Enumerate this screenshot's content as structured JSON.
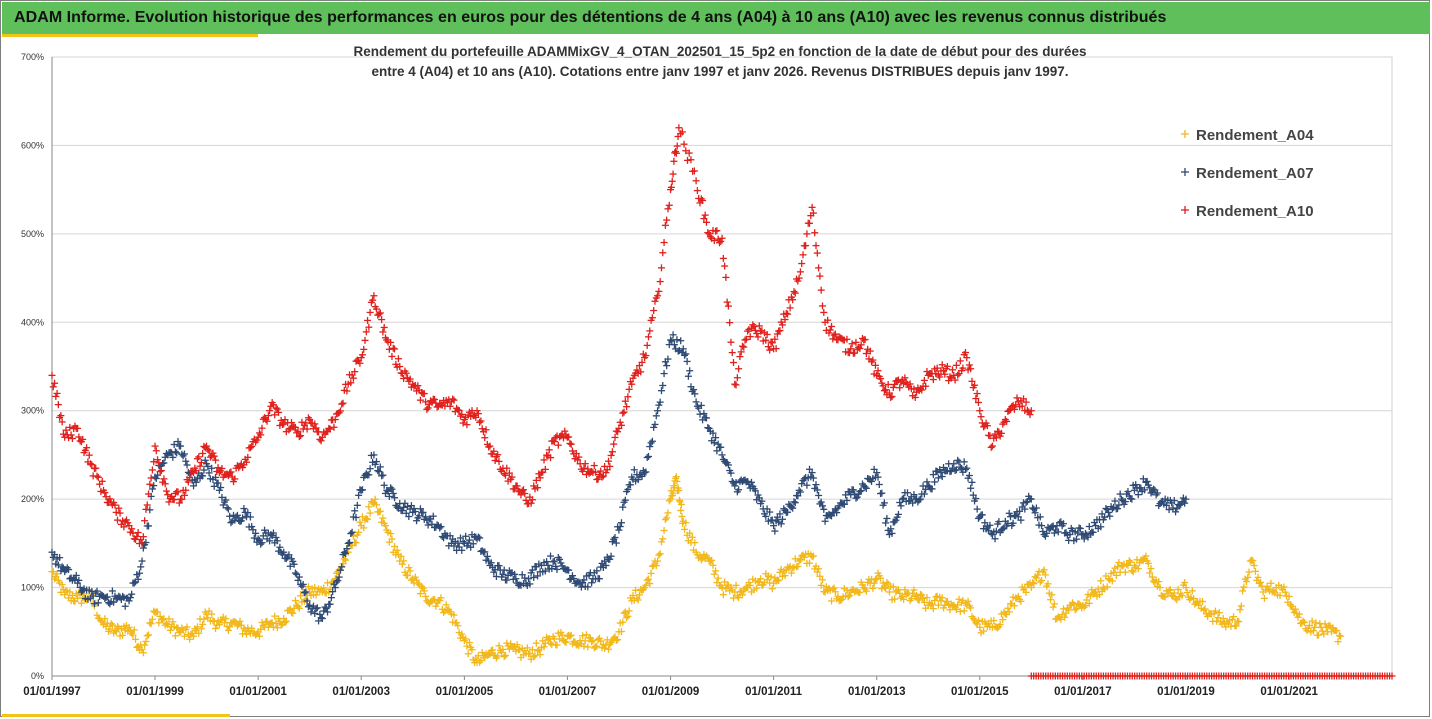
{
  "header": {
    "title": "ADAM Informe. Evolution historique des performances en euros pour des détentions de 4 ans (A04) à 10 ans (A10) avec les revenus connus distribués",
    "band_color": "#5ebf5b",
    "accent_color": "#f0c419"
  },
  "chart_data": {
    "type": "scatter",
    "subtitle_lines": [
      "Rendement du portefeuille ADAMMixGV_4_OTAN_202501_15_5p2  en fonction de la date de début pour des durées",
      "entre 4 (A04) et 10 ans (A10). Cotations entre janv 1997 et janv 2026. Revenus DISTRIBUES depuis janv 1997."
    ],
    "xlabel": "",
    "ylabel": "",
    "x_range": [
      "1997-01-01",
      "2022-12-31"
    ],
    "ylim": [
      0,
      700
    ],
    "y_ticks": [
      "0%",
      "100%",
      "200%",
      "300%",
      "400%",
      "500%",
      "600%",
      "700%"
    ],
    "x_ticks": [
      "01/01/1997",
      "01/01/1999",
      "01/01/2001",
      "01/01/2003",
      "01/01/2005",
      "01/01/2007",
      "01/01/2009",
      "01/01/2011",
      "01/01/2013",
      "01/01/2015",
      "01/01/2017",
      "01/01/2019",
      "01/01/2021"
    ],
    "grid": "horizontal",
    "legend_position": "top-right",
    "marker": "+",
    "series": [
      {
        "name": "Rendement_A04",
        "color": "#f2b81b",
        "points": [
          [
            "1997-01-01",
            118
          ],
          [
            "1997-04-01",
            92
          ],
          [
            "1997-07-01",
            88
          ],
          [
            "1997-10-01",
            90
          ],
          [
            "1998-01-01",
            58
          ],
          [
            "1998-04-01",
            50
          ],
          [
            "1998-07-01",
            55
          ],
          [
            "1998-10-01",
            30
          ],
          [
            "1999-01-01",
            72
          ],
          [
            "1999-04-01",
            58
          ],
          [
            "1999-07-01",
            50
          ],
          [
            "1999-10-01",
            45
          ],
          [
            "2000-01-01",
            70
          ],
          [
            "2000-04-01",
            58
          ],
          [
            "2000-07-01",
            60
          ],
          [
            "2000-10-01",
            52
          ],
          [
            "2001-01-01",
            50
          ],
          [
            "2001-04-01",
            60
          ],
          [
            "2001-07-01",
            65
          ],
          [
            "2001-10-01",
            80
          ],
          [
            "2002-01-01",
            95
          ],
          [
            "2002-04-01",
            95
          ],
          [
            "2002-07-01",
            110
          ],
          [
            "2002-10-01",
            140
          ],
          [
            "2003-01-01",
            170
          ],
          [
            "2003-04-01",
            195
          ],
          [
            "2003-07-01",
            165
          ],
          [
            "2003-10-01",
            130
          ],
          [
            "2004-01-01",
            110
          ],
          [
            "2004-04-01",
            90
          ],
          [
            "2004-07-01",
            85
          ],
          [
            "2004-10-01",
            70
          ],
          [
            "2005-01-01",
            40
          ],
          [
            "2005-04-01",
            15
          ],
          [
            "2005-07-01",
            25
          ],
          [
            "2005-10-01",
            30
          ],
          [
            "2006-01-01",
            28
          ],
          [
            "2006-04-01",
            25
          ],
          [
            "2006-07-01",
            32
          ],
          [
            "2006-10-01",
            42
          ],
          [
            "2007-01-01",
            45
          ],
          [
            "2007-04-01",
            40
          ],
          [
            "2007-07-01",
            40
          ],
          [
            "2007-10-01",
            35
          ],
          [
            "2008-01-01",
            50
          ],
          [
            "2008-04-01",
            85
          ],
          [
            "2008-07-01",
            100
          ],
          [
            "2008-10-01",
            130
          ],
          [
            "2009-01-01",
            200
          ],
          [
            "2009-02-15",
            220
          ],
          [
            "2009-04-01",
            175
          ],
          [
            "2009-07-01",
            140
          ],
          [
            "2009-10-01",
            130
          ],
          [
            "2010-01-01",
            100
          ],
          [
            "2010-04-01",
            95
          ],
          [
            "2010-07-01",
            100
          ],
          [
            "2010-10-01",
            110
          ],
          [
            "2011-01-01",
            105
          ],
          [
            "2011-04-01",
            120
          ],
          [
            "2011-07-01",
            130
          ],
          [
            "2011-10-01",
            135
          ],
          [
            "2012-01-01",
            95
          ],
          [
            "2012-04-01",
            90
          ],
          [
            "2012-07-01",
            95
          ],
          [
            "2012-10-01",
            100
          ],
          [
            "2013-01-01",
            110
          ],
          [
            "2013-04-01",
            95
          ],
          [
            "2013-07-01",
            90
          ],
          [
            "2013-10-01",
            90
          ],
          [
            "2014-01-01",
            80
          ],
          [
            "2014-04-01",
            85
          ],
          [
            "2014-07-01",
            80
          ],
          [
            "2014-10-01",
            80
          ],
          [
            "2015-01-01",
            55
          ],
          [
            "2015-04-01",
            55
          ],
          [
            "2015-07-01",
            70
          ],
          [
            "2015-10-01",
            90
          ],
          [
            "2016-01-01",
            100
          ],
          [
            "2016-04-01",
            120
          ],
          [
            "2016-07-01",
            65
          ],
          [
            "2016-10-01",
            80
          ],
          [
            "2017-01-01",
            80
          ],
          [
            "2017-04-01",
            95
          ],
          [
            "2017-07-01",
            110
          ],
          [
            "2017-10-01",
            125
          ],
          [
            "2018-01-01",
            125
          ],
          [
            "2018-04-01",
            130
          ],
          [
            "2018-07-01",
            100
          ],
          [
            "2018-10-01",
            90
          ],
          [
            "2019-01-01",
            100
          ],
          [
            "2019-04-01",
            80
          ],
          [
            "2019-07-01",
            70
          ],
          [
            "2019-10-01",
            60
          ],
          [
            "2020-01-01",
            62
          ],
          [
            "2020-04-01",
            130
          ],
          [
            "2020-07-01",
            95
          ],
          [
            "2020-10-01",
            100
          ],
          [
            "2021-01-01",
            90
          ],
          [
            "2021-04-01",
            60
          ],
          [
            "2021-07-01",
            55
          ],
          [
            "2021-10-01",
            50
          ],
          [
            "2022-01-01",
            45
          ]
        ]
      },
      {
        "name": "Rendement_A07",
        "color": "#2e4a74",
        "points": [
          [
            "1997-01-01",
            140
          ],
          [
            "1997-04-01",
            118
          ],
          [
            "1997-07-01",
            105
          ],
          [
            "1997-10-01",
            88
          ],
          [
            "1998-01-01",
            90
          ],
          [
            "1998-04-01",
            88
          ],
          [
            "1998-07-01",
            85
          ],
          [
            "1998-10-01",
            130
          ],
          [
            "1999-01-01",
            225
          ],
          [
            "1999-04-01",
            250
          ],
          [
            "1999-07-01",
            260
          ],
          [
            "1999-10-01",
            215
          ],
          [
            "2000-01-01",
            240
          ],
          [
            "2000-04-01",
            210
          ],
          [
            "2000-07-01",
            175
          ],
          [
            "2000-10-01",
            185
          ],
          [
            "2001-01-01",
            155
          ],
          [
            "2001-04-01",
            160
          ],
          [
            "2001-07-01",
            140
          ],
          [
            "2001-10-01",
            115
          ],
          [
            "2002-01-01",
            80
          ],
          [
            "2002-04-01",
            65
          ],
          [
            "2002-07-01",
            100
          ],
          [
            "2002-10-01",
            150
          ],
          [
            "2003-01-01",
            210
          ],
          [
            "2003-04-01",
            250
          ],
          [
            "2003-07-01",
            210
          ],
          [
            "2003-10-01",
            195
          ],
          [
            "2004-01-01",
            185
          ],
          [
            "2004-04-01",
            180
          ],
          [
            "2004-07-01",
            170
          ],
          [
            "2004-10-01",
            150
          ],
          [
            "2005-01-01",
            150
          ],
          [
            "2005-04-01",
            155
          ],
          [
            "2005-07-01",
            125
          ],
          [
            "2005-10-01",
            115
          ],
          [
            "2006-01-01",
            110
          ],
          [
            "2006-04-01",
            110
          ],
          [
            "2006-07-01",
            125
          ],
          [
            "2006-10-01",
            130
          ],
          [
            "2007-01-01",
            120
          ],
          [
            "2007-04-01",
            105
          ],
          [
            "2007-07-01",
            110
          ],
          [
            "2007-10-01",
            125
          ],
          [
            "2008-01-01",
            165
          ],
          [
            "2008-04-01",
            225
          ],
          [
            "2008-07-01",
            230
          ],
          [
            "2008-10-01",
            300
          ],
          [
            "2009-01-01",
            380
          ],
          [
            "2009-04-01",
            370
          ],
          [
            "2009-07-01",
            310
          ],
          [
            "2009-10-01",
            280
          ],
          [
            "2010-01-01",
            250
          ],
          [
            "2010-04-01",
            215
          ],
          [
            "2010-07-01",
            220
          ],
          [
            "2010-10-01",
            195
          ],
          [
            "2011-01-01",
            170
          ],
          [
            "2011-04-01",
            185
          ],
          [
            "2011-07-01",
            210
          ],
          [
            "2011-10-01",
            230
          ],
          [
            "2012-01-01",
            175
          ],
          [
            "2012-04-01",
            190
          ],
          [
            "2012-07-01",
            205
          ],
          [
            "2012-10-01",
            215
          ],
          [
            "2013-01-01",
            230
          ],
          [
            "2013-04-01",
            160
          ],
          [
            "2013-07-01",
            200
          ],
          [
            "2013-10-01",
            200
          ],
          [
            "2014-01-01",
            215
          ],
          [
            "2014-04-01",
            230
          ],
          [
            "2014-07-01",
            240
          ],
          [
            "2014-10-01",
            235
          ],
          [
            "2015-01-01",
            180
          ],
          [
            "2015-04-01",
            160
          ],
          [
            "2015-07-01",
            175
          ],
          [
            "2015-10-01",
            180
          ],
          [
            "2016-01-01",
            200
          ],
          [
            "2016-04-01",
            160
          ],
          [
            "2016-07-01",
            170
          ],
          [
            "2016-10-01",
            160
          ],
          [
            "2017-01-01",
            160
          ],
          [
            "2017-04-01",
            170
          ],
          [
            "2017-07-01",
            185
          ],
          [
            "2017-10-01",
            200
          ],
          [
            "2018-01-01",
            210
          ],
          [
            "2018-04-01",
            220
          ],
          [
            "2018-07-01",
            195
          ],
          [
            "2018-10-01",
            190
          ],
          [
            "2019-01-01",
            200
          ]
        ]
      },
      {
        "name": "Rendement_A10",
        "color": "#e0201c",
        "points": [
          [
            "1997-01-01",
            340
          ],
          [
            "1997-04-01",
            270
          ],
          [
            "1997-07-01",
            280
          ],
          [
            "1997-10-01",
            240
          ],
          [
            "1998-01-01",
            210
          ],
          [
            "1998-04-01",
            185
          ],
          [
            "1998-07-01",
            170
          ],
          [
            "1998-10-01",
            150
          ],
          [
            "1999-01-01",
            260
          ],
          [
            "1999-04-01",
            205
          ],
          [
            "1999-07-01",
            200
          ],
          [
            "1999-10-01",
            230
          ],
          [
            "2000-01-01",
            260
          ],
          [
            "2000-04-01",
            230
          ],
          [
            "2000-07-01",
            225
          ],
          [
            "2000-10-01",
            245
          ],
          [
            "2001-01-01",
            270
          ],
          [
            "2001-04-01",
            305
          ],
          [
            "2001-07-01",
            285
          ],
          [
            "2001-10-01",
            275
          ],
          [
            "2002-01-01",
            290
          ],
          [
            "2002-04-01",
            270
          ],
          [
            "2002-07-01",
            290
          ],
          [
            "2002-10-01",
            330
          ],
          [
            "2003-01-01",
            360
          ],
          [
            "2003-04-01",
            430
          ],
          [
            "2003-07-01",
            380
          ],
          [
            "2003-10-01",
            350
          ],
          [
            "2004-01-01",
            330
          ],
          [
            "2004-04-01",
            310
          ],
          [
            "2004-07-01",
            305
          ],
          [
            "2004-10-01",
            310
          ],
          [
            "2005-01-01",
            290
          ],
          [
            "2005-04-01",
            300
          ],
          [
            "2005-07-01",
            260
          ],
          [
            "2005-10-01",
            235
          ],
          [
            "2006-01-01",
            215
          ],
          [
            "2006-04-01",
            195
          ],
          [
            "2006-07-01",
            230
          ],
          [
            "2006-10-01",
            265
          ],
          [
            "2007-01-01",
            270
          ],
          [
            "2007-04-01",
            240
          ],
          [
            "2007-07-01",
            230
          ],
          [
            "2007-10-01",
            230
          ],
          [
            "2008-01-01",
            280
          ],
          [
            "2008-04-01",
            330
          ],
          [
            "2008-07-01",
            360
          ],
          [
            "2008-10-01",
            430
          ],
          [
            "2009-01-01",
            550
          ],
          [
            "2009-03-01",
            620
          ],
          [
            "2009-07-01",
            560
          ],
          [
            "2009-10-01",
            500
          ],
          [
            "2010-01-01",
            495
          ],
          [
            "2010-04-01",
            330
          ],
          [
            "2010-07-01",
            390
          ],
          [
            "2010-10-01",
            390
          ],
          [
            "2011-01-01",
            370
          ],
          [
            "2011-04-01",
            410
          ],
          [
            "2011-07-01",
            450
          ],
          [
            "2011-10-01",
            530
          ],
          [
            "2012-01-01",
            400
          ],
          [
            "2012-04-01",
            380
          ],
          [
            "2012-07-01",
            370
          ],
          [
            "2012-10-01",
            380
          ],
          [
            "2013-01-01",
            340
          ],
          [
            "2013-04-01",
            320
          ],
          [
            "2013-07-01",
            335
          ],
          [
            "2013-10-01",
            315
          ],
          [
            "2014-01-01",
            340
          ],
          [
            "2014-04-01",
            345
          ],
          [
            "2014-07-01",
            340
          ],
          [
            "2014-10-01",
            360
          ],
          [
            "2015-01-01",
            300
          ],
          [
            "2015-04-01",
            260
          ],
          [
            "2015-07-01",
            290
          ],
          [
            "2015-10-01",
            310
          ],
          [
            "2016-01-01",
            300
          ]
        ],
        "zero_run": [
          "2016-01-01",
          "2022-12-31",
          0
        ]
      }
    ]
  }
}
